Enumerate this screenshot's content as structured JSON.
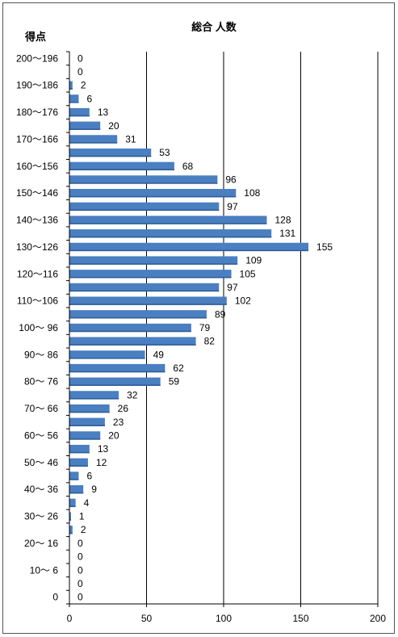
{
  "chart_data": {
    "type": "bar",
    "orientation": "horizontal",
    "title": "総合 人数",
    "ylabel": "得点",
    "xlabel": "",
    "xlim": [
      0,
      200
    ],
    "xticks": [
      0,
      50,
      100,
      150,
      200
    ],
    "grid": true,
    "legend": "none",
    "bar_color": "#4a7fc1",
    "category_labels": [
      "200〜196",
      "190〜186",
      "180〜176",
      "170〜166",
      "160〜156",
      "150〜146",
      "140〜136",
      "130〜126",
      "120〜116",
      "110〜106",
      "100〜 96",
      "90〜 86",
      "80〜 76",
      "70〜 66",
      "60〜 56",
      "50〜 46",
      "40〜 36",
      "30〜 26",
      "20〜 16",
      "10〜 6",
      "0"
    ],
    "values": [
      0,
      0,
      2,
      6,
      13,
      20,
      31,
      53,
      68,
      96,
      108,
      97,
      128,
      131,
      155,
      109,
      105,
      97,
      102,
      89,
      79,
      82,
      49,
      62,
      59,
      32,
      26,
      23,
      20,
      13,
      12,
      6,
      9,
      4,
      1,
      2,
      0,
      0,
      0,
      0,
      0
    ]
  }
}
